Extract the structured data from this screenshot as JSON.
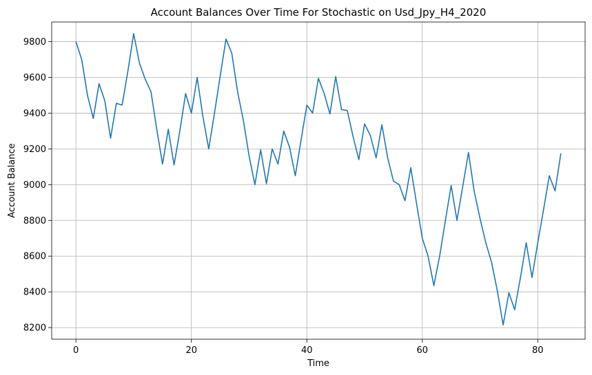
{
  "chart_data": {
    "type": "line",
    "title": "Account Balances Over Time For Stochastic on Usd_Jpy_H4_2020",
    "xlabel": "Time",
    "ylabel": "Account Balance",
    "xlim": [
      -4.2,
      88.2
    ],
    "ylim": [
      8135,
      9910
    ],
    "xticks": [
      0,
      20,
      40,
      60,
      80
    ],
    "yticks": [
      8200,
      8400,
      8600,
      8800,
      9000,
      9200,
      9400,
      9600,
      9800
    ],
    "grid": true,
    "series": [
      {
        "color": "#1f77b4",
        "x": [
          0,
          1,
          2,
          3,
          4,
          5,
          6,
          7,
          8,
          9,
          10,
          11,
          12,
          13,
          14,
          15,
          16,
          17,
          18,
          19,
          20,
          21,
          22,
          23,
          24,
          25,
          26,
          27,
          28,
          29,
          30,
          31,
          32,
          33,
          34,
          35,
          36,
          37,
          38,
          39,
          40,
          41,
          42,
          43,
          44,
          45,
          46,
          47,
          48,
          49,
          50,
          51,
          52,
          53,
          54,
          55,
          56,
          57,
          58,
          59,
          60,
          61,
          62,
          63,
          64,
          65,
          66,
          67,
          68,
          69,
          70,
          71,
          72,
          73,
          74,
          75,
          76,
          77,
          78,
          79,
          80,
          81,
          82,
          83,
          84
        ],
        "values": [
          9800,
          9700,
          9500,
          9370,
          9565,
          9470,
          9260,
          9455,
          9445,
          9635,
          9845,
          9680,
          9590,
          9520,
          9310,
          9115,
          9310,
          9110,
          9300,
          9510,
          9400,
          9600,
          9380,
          9200,
          9400,
          9610,
          9815,
          9735,
          9520,
          9360,
          9160,
          9000,
          9195,
          9005,
          9200,
          9115,
          9300,
          9210,
          9050,
          9250,
          9445,
          9400,
          9595,
          9510,
          9395,
          9605,
          9420,
          9415,
          9270,
          9140,
          9340,
          9275,
          9150,
          9335,
          9150,
          9020,
          9000,
          8910,
          9095,
          8895,
          8700,
          8600,
          8435,
          8600,
          8800,
          8995,
          8800,
          8990,
          9180,
          8960,
          8810,
          8675,
          8565,
          8405,
          8215,
          8395,
          8300,
          8480,
          8675,
          8480,
          8675,
          8860,
          9050,
          8965,
          9175
        ]
      }
    ]
  }
}
